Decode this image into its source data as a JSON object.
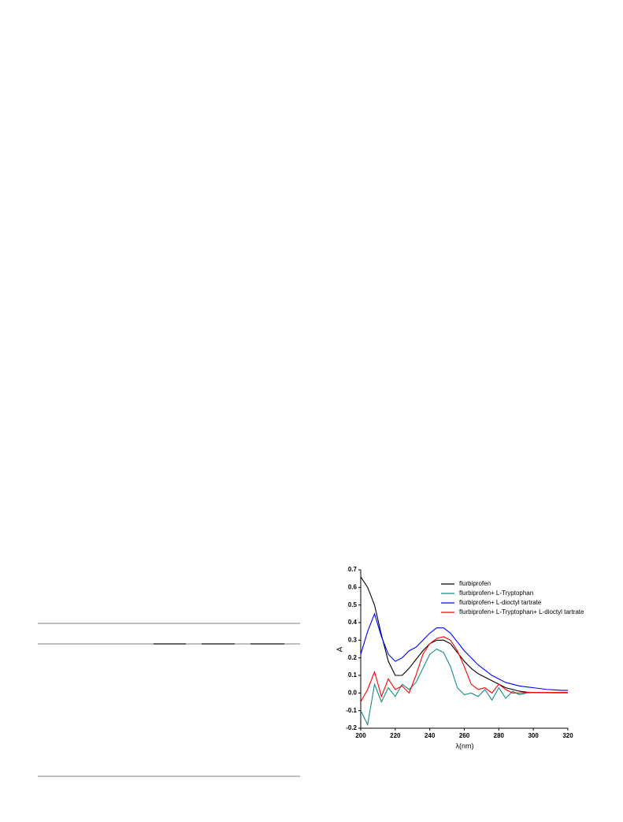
{
  "chart_data": {
    "type": "line",
    "x_label": "λ(nm)",
    "y_label": "A",
    "x": [
      200,
      204,
      208,
      212,
      216,
      220,
      224,
      228,
      232,
      236,
      240,
      244,
      248,
      252,
      256,
      260,
      264,
      268,
      272,
      276,
      280,
      284,
      288,
      292,
      296,
      300,
      304,
      308,
      312,
      316,
      320
    ],
    "series": [
      {
        "name": "flurbiprofen",
        "color": "#000000",
        "values": [
          0.66,
          0.6,
          0.5,
          0.33,
          0.18,
          0.1,
          0.1,
          0.14,
          0.19,
          0.24,
          0.28,
          0.3,
          0.3,
          0.28,
          0.23,
          0.18,
          0.14,
          0.11,
          0.09,
          0.07,
          0.05,
          0.03,
          0.02,
          0.01,
          0.005,
          0.003,
          0.002,
          0.002,
          0.001,
          0.001,
          0.001
        ]
      },
      {
        "name": "flurbiprofen+ L-Tryptophan",
        "color": "#138a8a",
        "values": [
          -0.1,
          -0.18,
          0.05,
          -0.05,
          0.03,
          -0.02,
          0.05,
          0.02,
          0.06,
          0.14,
          0.22,
          0.25,
          0.23,
          0.15,
          0.03,
          -0.01,
          0.0,
          -0.02,
          0.02,
          -0.04,
          0.03,
          -0.03,
          0.01,
          -0.01,
          0.0,
          0.003,
          0.003,
          0.003,
          0.003,
          0.003,
          0.003
        ]
      },
      {
        "name": "flurbiprofen+ L-dioctyl tartrate",
        "color": "#0000ff",
        "values": [
          0.22,
          0.35,
          0.45,
          0.32,
          0.22,
          0.18,
          0.2,
          0.24,
          0.26,
          0.3,
          0.34,
          0.37,
          0.37,
          0.34,
          0.29,
          0.24,
          0.2,
          0.16,
          0.13,
          0.1,
          0.08,
          0.06,
          0.05,
          0.04,
          0.035,
          0.03,
          0.025,
          0.02,
          0.018,
          0.015,
          0.015
        ]
      },
      {
        "name": "flurbiprofen+ L-Tryptophan+ L-dioctyl tartrate",
        "color": "#ff0000",
        "values": [
          -0.05,
          0.02,
          0.12,
          -0.02,
          0.08,
          0.02,
          0.04,
          0.0,
          0.1,
          0.22,
          0.28,
          0.31,
          0.32,
          0.3,
          0.24,
          0.15,
          0.05,
          0.02,
          0.03,
          0.0,
          0.05,
          0.02,
          0.0,
          0.0,
          0.003,
          0.003,
          0.003,
          0.003,
          0.003,
          0.003,
          0.003
        ]
      }
    ],
    "xlim": [
      200,
      320
    ],
    "xticks": [
      200,
      220,
      240,
      260,
      280,
      300,
      320
    ],
    "ylim": [
      -0.2,
      0.7
    ],
    "yticks": [
      -0.2,
      -0.1,
      {
        "value": 0,
        "label": "0.0"
      },
      0.1,
      0.2,
      0.3,
      0.4,
      0.5,
      0.6,
      0.7
    ],
    "legend": "top-right"
  }
}
